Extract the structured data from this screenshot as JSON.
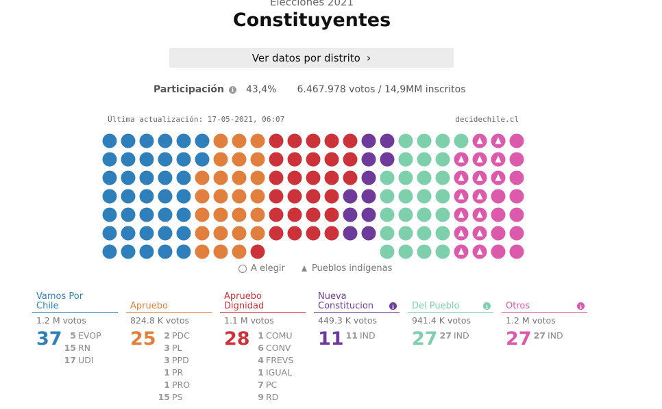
{
  "header": {
    "subtitle": "Elecciones 2021",
    "title": "Constituyentes",
    "district_button": "Ver datos por distrito"
  },
  "participation": {
    "label": "Participación",
    "percent": "43,4%",
    "votes": "6.467.978 votos / 14,9MM inscritos"
  },
  "meta": {
    "updated": "Última actualización: 17-05-2021, 06:07",
    "source": "decidechile.cl"
  },
  "legend": {
    "to_elect": "A elegir",
    "indigenous": "Pueblos indígenas"
  },
  "colors": {
    "vamos": "#2e7fba",
    "apruebo": "#e07f3e",
    "dignidad": "#cc3239",
    "nueva": "#6e3b9b",
    "pueblo": "#7ed0ad",
    "otros": "#dc5aab"
  },
  "parties": [
    {
      "key": "vamos",
      "name": "Vamos Por Chile",
      "votes": "1.2 M votos",
      "total": "37",
      "color": "#2e7fba",
      "info": false,
      "subs": [
        {
          "n": "5",
          "name": "EVOP"
        },
        {
          "n": "15",
          "name": "RN"
        },
        {
          "n": "17",
          "name": "UDI"
        }
      ]
    },
    {
      "key": "apruebo",
      "name": "Apruebo",
      "votes": "824.8 K votos",
      "total": "25",
      "color": "#e07f3e",
      "info": false,
      "subs": [
        {
          "n": "2",
          "name": "PDC"
        },
        {
          "n": "3",
          "name": "PL"
        },
        {
          "n": "3",
          "name": "PPD"
        },
        {
          "n": "1",
          "name": "PR"
        },
        {
          "n": "1",
          "name": "PRO"
        },
        {
          "n": "15",
          "name": "PS"
        }
      ]
    },
    {
      "key": "dignidad",
      "name": "Apruebo Dignidad",
      "votes": "1.1 M votos",
      "total": "28",
      "color": "#cc3239",
      "info": false,
      "subs": [
        {
          "n": "1",
          "name": "COMU"
        },
        {
          "n": "6",
          "name": "CONV"
        },
        {
          "n": "4",
          "name": "FREVS"
        },
        {
          "n": "1",
          "name": "IGUAL"
        },
        {
          "n": "7",
          "name": "PC"
        },
        {
          "n": "9",
          "name": "RD"
        }
      ]
    },
    {
      "key": "nueva",
      "name": "Nueva Constitucion",
      "votes": "449.3 K votos",
      "total": "11",
      "color": "#6e3b9b",
      "info": true,
      "subs": [
        {
          "n": "11",
          "name": "IND"
        }
      ]
    },
    {
      "key": "pueblo",
      "name": "Del Pueblo",
      "votes": "941.4 K votos",
      "total": "27",
      "color": "#7ed0ad",
      "info": true,
      "subs": [
        {
          "n": "27",
          "name": "IND"
        }
      ]
    },
    {
      "key": "otros",
      "name": "Otros",
      "votes": "1.2 M votos",
      "total": "27",
      "color": "#dc5aab",
      "info": true,
      "subs": [
        {
          "n": "27",
          "name": "IND"
        }
      ]
    }
  ],
  "seat_grid": {
    "columns": 23,
    "rows": [
      [
        "vamos",
        "vamos",
        "vamos",
        "vamos",
        "vamos",
        "vamos",
        "apruebo",
        "apruebo",
        "apruebo",
        "dignidad",
        "dignidad",
        "dignidad",
        "dignidad",
        "dignidad",
        "nueva",
        "nueva",
        "pueblo",
        "pueblo",
        "pueblo",
        "pueblo",
        "otros-ind",
        "otros-ind",
        "otros"
      ],
      [
        "vamos",
        "vamos",
        "vamos",
        "vamos",
        "vamos",
        "vamos",
        "apruebo",
        "apruebo",
        "apruebo",
        "dignidad",
        "dignidad",
        "dignidad",
        "dignidad",
        "dignidad",
        "nueva",
        "nueva",
        "pueblo",
        "pueblo",
        "pueblo",
        "otros-ind",
        "otros-ind",
        "otros-ind",
        "otros"
      ],
      [
        "vamos",
        "vamos",
        "vamos",
        "vamos",
        "vamos",
        "apruebo",
        "apruebo",
        "apruebo",
        "apruebo",
        "dignidad",
        "dignidad",
        "dignidad",
        "dignidad",
        "dignidad",
        "nueva",
        "pueblo",
        "pueblo",
        "pueblo",
        "pueblo",
        "otros-ind",
        "otros-ind",
        "otros-ind",
        "otros"
      ],
      [
        "vamos",
        "vamos",
        "vamos",
        "vamos",
        "vamos",
        "apruebo",
        "apruebo",
        "apruebo",
        "apruebo",
        "dignidad",
        "dignidad",
        "dignidad",
        "dignidad",
        "nueva",
        "nueva",
        "pueblo",
        "pueblo",
        "pueblo",
        "pueblo",
        "otros-ind",
        "otros-ind",
        "otros",
        "otros"
      ],
      [
        "vamos",
        "vamos",
        "vamos",
        "vamos",
        "vamos",
        "apruebo",
        "apruebo",
        "apruebo",
        "apruebo",
        "dignidad",
        "dignidad",
        "dignidad",
        "dignidad",
        "nueva",
        "nueva",
        "pueblo",
        "pueblo",
        "pueblo",
        "pueblo",
        "otros-ind",
        "otros-ind",
        "otros",
        "otros"
      ],
      [
        "vamos",
        "vamos",
        "vamos",
        "vamos",
        "vamos",
        "apruebo",
        "apruebo",
        "apruebo",
        "apruebo",
        "dignidad",
        "dignidad",
        "dignidad",
        "dignidad",
        "nueva",
        "nueva",
        "pueblo",
        "pueblo",
        "pueblo",
        "pueblo",
        "otros-ind",
        "otros-ind",
        "otros",
        "otros"
      ],
      [
        "vamos",
        "vamos",
        "vamos",
        "vamos",
        "vamos",
        "apruebo",
        "apruebo",
        "apruebo",
        "dignidad",
        "",
        "",
        "",
        "",
        "",
        "",
        "pueblo",
        "pueblo",
        "pueblo",
        "pueblo",
        "otros-ind",
        "otros-ind",
        "otros",
        "otros"
      ]
    ]
  }
}
